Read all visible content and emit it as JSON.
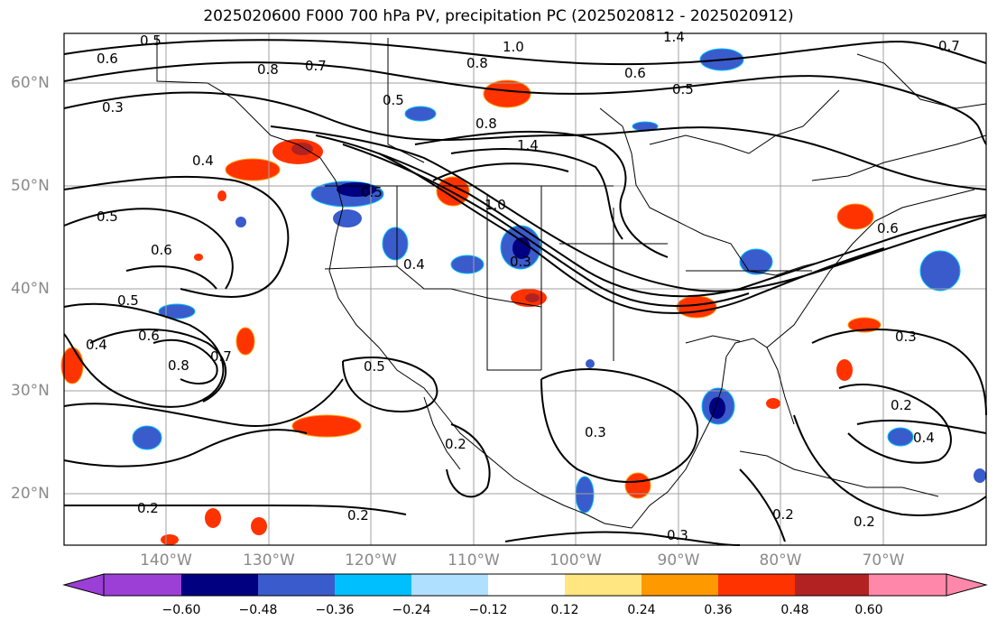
{
  "title": "2025020600 F000 700 hPa PV, precipitation PC (2025020812 - 2025020912)",
  "latitude_labels": [
    "60°N",
    "50°N",
    "40°N",
    "30°N",
    "20°N"
  ],
  "longitude_labels": [
    "140°W",
    "130°W",
    "120°W",
    "110°W",
    "100°W",
    "90°W",
    "80°W",
    "70°W"
  ],
  "contour_labels": [
    "0.5",
    "0.6",
    "1.0",
    "0.8",
    "1.4",
    "0.7",
    "0.8",
    "0.3",
    "0.7",
    "0.5",
    "0.8",
    "1.4",
    "0.6",
    "0.5",
    "0.4",
    "0.5",
    "0.5",
    "0.6",
    "1.0",
    "0.6",
    "0.4",
    "0.5",
    "0.6",
    "0.4",
    "0.8",
    "0.7",
    "0.5",
    "0.3",
    "0.2",
    "0.4",
    "0.2",
    "0.2",
    "0.2",
    "0.3",
    "0.3",
    "0.2",
    "0.2",
    "0.3"
  ],
  "colorbar": {
    "ticks": [
      "−0.60",
      "−0.48",
      "−0.36",
      "−0.24",
      "−0.12",
      "0.12",
      "0.24",
      "0.36",
      "0.48",
      "0.60"
    ],
    "colors": [
      "#9b3fd6",
      "#000080",
      "#3a5bcc",
      "#00bfff",
      "#b0e0ff",
      "#ffffff",
      "#ffe680",
      "#ff9900",
      "#ff3300",
      "#b22222",
      "#ff88aa"
    ]
  }
}
